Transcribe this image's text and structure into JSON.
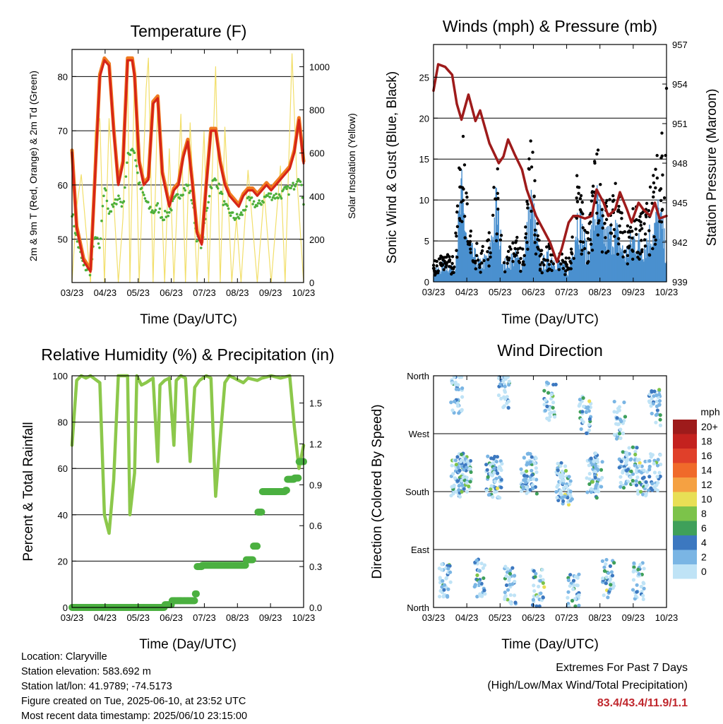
{
  "colors": {
    "temp": "#d62518",
    "temp9m": "#f07a20",
    "dewpoint": "#4daf3a",
    "solar": "#f2df6b",
    "wind": "#4a90cf",
    "gust": "#000000",
    "pressure": "#9e1b1b",
    "rh": "#8cc84b",
    "precip": "#4bb040",
    "extremes": "#c0272d"
  },
  "panels": {
    "temperature": {
      "title": "Temperature (F)",
      "ylabel_left": "2m & 9m T (Red, Orange) & 2m Td (Green)",
      "ylabel_right": "Solar Insolation (Yellow)",
      "xlabel": "Time (Day/UTC)",
      "yticks_left": [
        "50",
        "60",
        "70",
        "80"
      ],
      "yticks_right": [
        "0",
        "200",
        "400",
        "600",
        "800",
        "1000"
      ]
    },
    "winds": {
      "title": "Winds (mph) & Pressure (mb)",
      "ylabel_left": "Sonic Wind & Gust (Blue, Black)",
      "ylabel_right": "Station Pressure (Maroon)",
      "xlabel": "Time (Day/UTC)",
      "yticks_left": [
        "0",
        "5",
        "10",
        "15",
        "20",
        "25"
      ],
      "yticks_right": [
        "939",
        "942",
        "945",
        "948",
        "951",
        "954",
        "957"
      ]
    },
    "humidity": {
      "title": "Relative Humidity (%) & Precipitation (in)",
      "ylabel_left": "Percent & Total Rainfall",
      "xlabel": "Time (Day/UTC)",
      "yticks_left": [
        "0",
        "20",
        "40",
        "60",
        "80",
        "100"
      ],
      "yticks_right": [
        "0.0",
        "0.3",
        "0.6",
        "0.9",
        "1.2",
        "1.5"
      ]
    },
    "direction": {
      "title": "Wind Direction",
      "ylabel_left": "Direction (Colored By Speed)",
      "xlabel": "Time (Day/UTC)",
      "yticks_left": [
        "North",
        "East",
        "South",
        "West",
        "North"
      ],
      "legend_title": "mph",
      "legend_labels": [
        "20+",
        "18",
        "16",
        "14",
        "12",
        "10",
        "8",
        "6",
        "4",
        "2",
        "0"
      ],
      "legend_colors": [
        "#9e1b1b",
        "#c4221f",
        "#e0402a",
        "#f06a2a",
        "#f5a142",
        "#e8df55",
        "#7cc34a",
        "#3fa05a",
        "#3c78c0",
        "#7ab5e4",
        "#bfe3f6"
      ]
    }
  },
  "xticks": [
    "03/23",
    "04/23",
    "05/23",
    "06/23",
    "07/23",
    "08/23",
    "09/23",
    "10/23"
  ],
  "chart_data": [
    {
      "type": "line",
      "title": "Temperature (F)",
      "xlabel": "Time (Day/UTC)",
      "ylabel": "2m & 9m T (Red, Orange) & 2m Td (Green)",
      "y2label": "Solar Insolation (Yellow)",
      "categories": [
        "03/23",
        "04/23",
        "05/23",
        "06/23",
        "07/23",
        "08/23",
        "09/23",
        "10/23"
      ],
      "ylim": [
        42,
        85
      ],
      "y2lim": [
        0,
        1080
      ],
      "grid": true,
      "series": [
        {
          "name": "2m T (Red)",
          "axis": "left",
          "x": [
            0,
            0.02,
            0.05,
            0.08,
            0.1,
            0.12,
            0.14,
            0.16,
            0.18,
            0.2,
            0.22,
            0.24,
            0.26,
            0.27,
            0.29,
            0.31,
            0.33,
            0.35,
            0.37,
            0.39,
            0.42,
            0.44,
            0.46,
            0.48,
            0.5,
            0.52,
            0.54,
            0.56,
            0.58,
            0.6,
            0.62,
            0.64,
            0.66,
            0.68,
            0.7,
            0.72,
            0.74,
            0.76,
            0.78,
            0.8,
            0.82,
            0.84,
            0.86,
            0.88,
            0.9,
            0.92,
            0.94,
            0.96,
            0.98,
            1.0
          ],
          "values": [
            66,
            52,
            46,
            44,
            62,
            80,
            83,
            82,
            70,
            60,
            64,
            83,
            83,
            80,
            64,
            60,
            61,
            75,
            76,
            62,
            56,
            59,
            60,
            65,
            68,
            60,
            51,
            49,
            60,
            70,
            70,
            64,
            60,
            58,
            57,
            56,
            58,
            59,
            59,
            58,
            59,
            60,
            59,
            60,
            61,
            62,
            63,
            66,
            72,
            64
          ]
        },
        {
          "name": "2m Td (Green)",
          "axis": "left",
          "x": [
            0,
            0.02,
            0.05,
            0.08,
            0.1,
            0.12,
            0.14,
            0.16,
            0.18,
            0.2,
            0.22,
            0.24,
            0.26,
            0.27,
            0.29,
            0.31,
            0.33,
            0.35,
            0.37,
            0.39,
            0.42,
            0.44,
            0.46,
            0.48,
            0.5,
            0.52,
            0.54,
            0.56,
            0.58,
            0.6,
            0.62,
            0.64,
            0.66,
            0.68,
            0.7,
            0.72,
            0.74,
            0.76,
            0.78,
            0.8,
            0.82,
            0.84,
            0.86,
            0.88,
            0.9,
            0.92,
            0.94,
            0.96,
            0.98,
            1.0
          ],
          "values": [
            55,
            50,
            45,
            44,
            51,
            48,
            60,
            55,
            56,
            58,
            56,
            65,
            67,
            66,
            60,
            58,
            56,
            55,
            56,
            54,
            55,
            57,
            58,
            59,
            60,
            57,
            50,
            49,
            55,
            60,
            61,
            59,
            56,
            55,
            54,
            54,
            55,
            57,
            57,
            56,
            57,
            58,
            58,
            58,
            58,
            59,
            59,
            60,
            62,
            57
          ]
        },
        {
          "name": "Solar Insolation (Yellow)",
          "axis": "right",
          "x": [
            0,
            0.02,
            0.04,
            0.08,
            0.1,
            0.12,
            0.14,
            0.16,
            0.2,
            0.22,
            0.24,
            0.25,
            0.27,
            0.29,
            0.32,
            0.33,
            0.35,
            0.37,
            0.4,
            0.42,
            0.44,
            0.47,
            0.49,
            0.51,
            0.54,
            0.57,
            0.59,
            0.62,
            0.64,
            0.66,
            0.69,
            0.71,
            0.73,
            0.76,
            0.8,
            0.83,
            0.86,
            0.9,
            0.92,
            0.95,
            0.97,
            1.0
          ],
          "values": [
            0,
            350,
            500,
            0,
            700,
            760,
            0,
            760,
            0,
            300,
            1020,
            0,
            980,
            0,
            900,
            1040,
            0,
            860,
            0,
            620,
            0,
            780,
            0,
            740,
            0,
            700,
            0,
            1000,
            0,
            720,
            0,
            300,
            0,
            520,
            0,
            420,
            0,
            540,
            0,
            1060,
            500,
            0
          ]
        }
      ]
    },
    {
      "type": "line",
      "title": "Winds (mph) & Pressure (mb)",
      "xlabel": "Time (Day/UTC)",
      "ylabel": "Sonic Wind & Gust (Blue, Black)",
      "y2label": "Station Pressure (Maroon)",
      "categories": [
        "03/23",
        "04/23",
        "05/23",
        "06/23",
        "07/23",
        "08/23",
        "09/23",
        "10/23"
      ],
      "ylim": [
        0,
        29
      ],
      "y2lim": [
        939,
        957
      ],
      "grid": true,
      "series": [
        {
          "name": "Sonic Wind (Blue)",
          "axis": "left",
          "x": [
            0,
            0.05,
            0.09,
            0.12,
            0.15,
            0.2,
            0.24,
            0.27,
            0.3,
            0.35,
            0.38,
            0.42,
            0.46,
            0.5,
            0.55,
            0.58,
            0.62,
            0.66,
            0.7,
            0.74,
            0.78,
            0.82,
            0.86,
            0.9,
            0.94,
            0.97,
            1.0
          ],
          "values": [
            1,
            2,
            1.5,
            10,
            4,
            2,
            3,
            9,
            2,
            3,
            2,
            9,
            2,
            3,
            2,
            1,
            8,
            3,
            9,
            5,
            6,
            3,
            5,
            4,
            6,
            8,
            3
          ]
        },
        {
          "name": "Gust (Black)",
          "axis": "left",
          "x": [
            0,
            0.05,
            0.09,
            0.12,
            0.15,
            0.2,
            0.24,
            0.27,
            0.3,
            0.35,
            0.38,
            0.42,
            0.46,
            0.5,
            0.55,
            0.58,
            0.62,
            0.66,
            0.7,
            0.74,
            0.78,
            0.82,
            0.86,
            0.9,
            0.94,
            0.97,
            1.0
          ],
          "values": [
            2,
            3,
            2.5,
            18,
            6,
            3,
            5,
            13,
            3,
            5,
            3,
            15,
            3,
            4,
            3,
            2,
            12,
            5,
            14,
            8,
            11,
            5,
            8,
            7,
            10,
            15,
            19
          ]
        },
        {
          "name": "Station Pressure (Maroon)",
          "axis": "right",
          "x": [
            0,
            0.02,
            0.05,
            0.08,
            0.1,
            0.12,
            0.15,
            0.18,
            0.2,
            0.24,
            0.28,
            0.3,
            0.32,
            0.35,
            0.38,
            0.4,
            0.44,
            0.47,
            0.5,
            0.53,
            0.55,
            0.58,
            0.6,
            0.62,
            0.65,
            0.68,
            0.7,
            0.73,
            0.75,
            0.78,
            0.8,
            0.83,
            0.85,
            0.88,
            0.9,
            0.93,
            0.95,
            0.97,
            1.0
          ],
          "values": [
            953.5,
            955.5,
            955.3,
            954.7,
            952.5,
            951.3,
            953.2,
            951.2,
            952,
            949.5,
            948,
            948.5,
            949.8,
            948.6,
            947.5,
            946,
            944,
            943,
            942,
            940.5,
            941.5,
            943.5,
            944,
            944,
            943.8,
            944,
            946,
            945,
            944,
            944.5,
            945.8,
            944.5,
            943.5,
            945,
            944.5,
            944,
            945,
            943.8,
            944
          ]
        }
      ]
    },
    {
      "type": "line",
      "title": "Relative Humidity (%) & Precipitation (in)",
      "xlabel": "Time (Day/UTC)",
      "ylabel": "Percent & Total Rainfall",
      "categories": [
        "03/23",
        "04/23",
        "05/23",
        "06/23",
        "07/23",
        "08/23",
        "09/23",
        "10/23"
      ],
      "ylim": [
        0,
        100
      ],
      "y2lim": [
        0,
        1.7
      ],
      "grid": true,
      "series": [
        {
          "name": "Relative Humidity",
          "axis": "left",
          "x": [
            0,
            0.02,
            0.04,
            0.06,
            0.08,
            0.12,
            0.14,
            0.16,
            0.18,
            0.2,
            0.24,
            0.25,
            0.27,
            0.28,
            0.3,
            0.32,
            0.35,
            0.37,
            0.38,
            0.4,
            0.42,
            0.44,
            0.45,
            0.47,
            0.49,
            0.51,
            0.53,
            0.55,
            0.58,
            0.6,
            0.62,
            0.64,
            0.66,
            0.68,
            0.7,
            0.72,
            0.74,
            0.76,
            0.8,
            0.82,
            0.86,
            0.9,
            0.94,
            0.96,
            0.98,
            1.0
          ],
          "values": [
            70,
            98,
            100,
            99,
            100,
            97,
            40,
            32,
            55,
            100,
            100,
            40,
            58,
            100,
            96,
            97,
            99,
            63,
            96,
            98,
            99,
            70,
            98,
            100,
            99,
            63,
            95,
            98,
            100,
            99,
            48,
            73,
            97,
            100,
            99,
            98,
            97,
            99,
            98,
            99,
            100,
            99,
            100,
            78,
            60,
            70
          ]
        },
        {
          "name": "Total Rainfall",
          "axis": "right",
          "x": [
            0,
            0.1,
            0.2,
            0.3,
            0.4,
            0.43,
            0.5,
            0.53,
            0.54,
            0.56,
            0.6,
            0.7,
            0.75,
            0.78,
            0.8,
            0.82,
            0.86,
            0.92,
            0.93,
            0.96,
            0.98,
            1.0
          ],
          "values": [
            0,
            0,
            0,
            0,
            0.02,
            0.05,
            0.05,
            0.1,
            0.3,
            0.31,
            0.31,
            0.31,
            0.35,
            0.45,
            0.7,
            0.85,
            0.85,
            0.86,
            0.94,
            0.95,
            1.07,
            1.07
          ]
        }
      ]
    },
    {
      "type": "scatter",
      "title": "Wind Direction",
      "xlabel": "Time (Day/UTC)",
      "ylabel": "Direction (Colored By Speed)",
      "categories": [
        "03/23",
        "04/23",
        "05/23",
        "06/23",
        "07/23",
        "08/23",
        "09/23",
        "10/23"
      ],
      "yticks": [
        "North",
        "East",
        "South",
        "West",
        "North"
      ],
      "ylim": [
        0,
        360
      ],
      "grid": true,
      "legend": "right",
      "series": [
        {
          "name": "Direction",
          "x": [
            0.1,
            0.12,
            0.14,
            0.25,
            0.27,
            0.4,
            0.42,
            0.55,
            0.57,
            0.68,
            0.7,
            0.82,
            0.85,
            0.9,
            0.95,
            0.05,
            0.2,
            0.33,
            0.45,
            0.6,
            0.75,
            0.88,
            0.1,
            0.3,
            0.5,
            0.65,
            0.8,
            0.95
          ],
          "values": [
            200,
            210,
            205,
            205,
            200,
            210,
            205,
            195,
            185,
            200,
            210,
            215,
            220,
            200,
            210,
            40,
            45,
            35,
            30,
            25,
            45,
            40,
            330,
            340,
            320,
            300,
            290,
            310
          ]
        }
      ]
    }
  ],
  "info": {
    "location": "Location: Claryville",
    "elevation": "Station elevation: 583.692 m",
    "latlon": "Station lat/lon: 41.9789; -74.5173",
    "created": "Figure created on Tue, 2025-06-10, at 23:52 UTC",
    "recent": "Most recent data timestamp: 2025/06/10 23:15:00"
  },
  "extremes": {
    "line1": "Extremes For Past 7 Days",
    "line2": "(High/Low/Max Wind/Total Precipitation)",
    "values": "83.4/43.4/11.9/1.1"
  }
}
